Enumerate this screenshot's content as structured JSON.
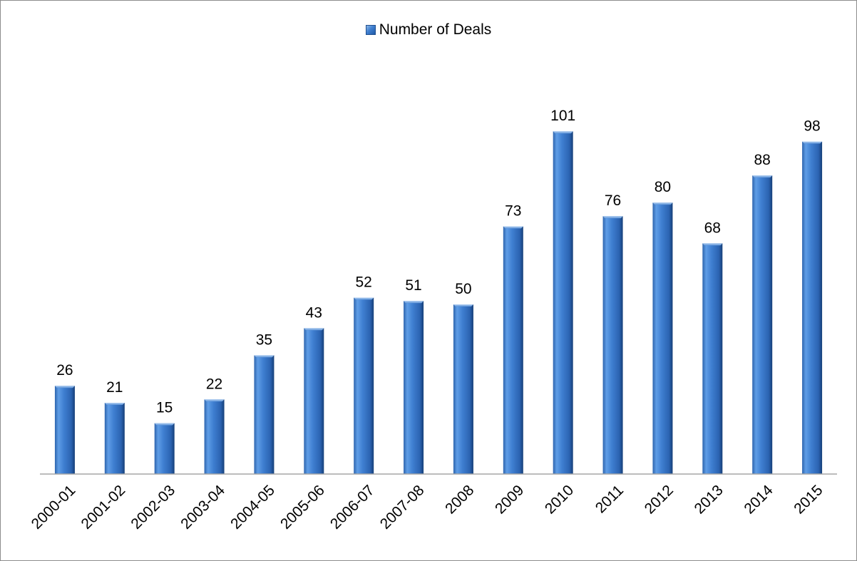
{
  "chart_data": {
    "type": "bar",
    "categories": [
      "2000-01",
      "2001-02",
      "2002-03",
      "2003-04",
      "2004-05",
      "2005-06",
      "2006-07",
      "2007-08",
      "2008",
      "2009",
      "2010",
      "2011",
      "2012",
      "2013",
      "2014",
      "2015"
    ],
    "series": [
      {
        "name": "Number of Deals",
        "values": [
          26,
          21,
          15,
          22,
          35,
          43,
          52,
          51,
          50,
          73,
          101,
          76,
          80,
          68,
          88,
          98
        ]
      }
    ],
    "title": "",
    "xlabel": "",
    "ylabel": "",
    "ylim": [
      0,
      101
    ],
    "grid": false,
    "legend_position": "top-center",
    "data_labels": true,
    "colors": {
      "bar_light": "#7fb0e8",
      "bar_mid": "#3d7fd1",
      "bar_dark": "#1d4f92",
      "axis": "#a6a6a6",
      "frame": "#8c8c8c"
    }
  }
}
